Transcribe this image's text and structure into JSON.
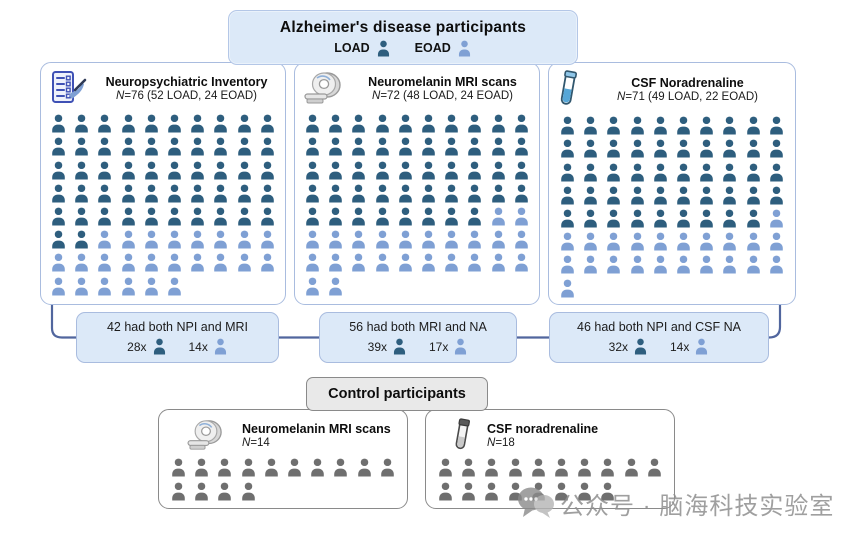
{
  "colors": {
    "load": "#2e5e7e",
    "eoad": "#7fa0d4",
    "control": "#6f6f6f"
  },
  "ad_header": {
    "title": "Alzheimer's disease participants",
    "legend": [
      {
        "label": "LOAD",
        "type": "load"
      },
      {
        "label": "EOAD",
        "type": "eoad"
      }
    ]
  },
  "ad_panels": [
    {
      "icon": "clipboard-pen-icon",
      "title": "Neuropsychiatric Inventory",
      "n_prefix": "N",
      "n_rest": "=76 (52 LOAD, 24 EOAD)",
      "load_count": 52,
      "eoad_count": 24,
      "rows": [
        [
          10,
          0
        ],
        [
          10,
          0
        ],
        [
          10,
          0
        ],
        [
          10,
          0
        ],
        [
          10,
          0
        ],
        [
          2,
          8
        ],
        [
          0,
          10
        ],
        [
          0,
          6
        ]
      ]
    },
    {
      "icon": "mri-scanner-icon",
      "title": "Neuromelanin MRI scans",
      "n_prefix": "N",
      "n_rest": "=72 (48 LOAD, 24 EOAD)",
      "load_count": 48,
      "eoad_count": 24,
      "rows": [
        [
          10,
          0
        ],
        [
          10,
          0
        ],
        [
          10,
          0
        ],
        [
          10,
          0
        ],
        [
          8,
          2
        ],
        [
          0,
          10
        ],
        [
          0,
          10
        ],
        [
          0,
          2
        ]
      ]
    },
    {
      "icon": "test-tube-icon",
      "title": "CSF Noradrenaline",
      "n_prefix": "N",
      "n_rest": "=71 (49 LOAD, 22 EOAD)",
      "load_count": 49,
      "eoad_count": 22,
      "rows": [
        [
          10,
          0
        ],
        [
          10,
          0
        ],
        [
          10,
          0
        ],
        [
          10,
          0
        ],
        [
          9,
          1
        ],
        [
          0,
          10
        ],
        [
          0,
          10
        ],
        [
          0,
          1
        ]
      ]
    }
  ],
  "overlap_boxes": [
    {
      "text": "42 had both NPI and MRI",
      "counts": [
        {
          "label": "28x",
          "type": "load"
        },
        {
          "label": "14x",
          "type": "eoad"
        }
      ]
    },
    {
      "text": "56 had both MRI and NA",
      "counts": [
        {
          "label": "39x",
          "type": "load"
        },
        {
          "label": "17x",
          "type": "eoad"
        }
      ]
    },
    {
      "text": "46 had both NPI and CSF NA",
      "counts": [
        {
          "label": "32x",
          "type": "load"
        },
        {
          "label": "14x",
          "type": "eoad"
        }
      ]
    }
  ],
  "control_header": {
    "title": "Control participants"
  },
  "control_panels": [
    {
      "icon": "mri-scanner-icon",
      "title": "Neuromelanin MRI scans",
      "n_prefix": "N",
      "n_rest": "=14",
      "count": 14,
      "rows": [
        10,
        4
      ]
    },
    {
      "icon": "test-tube-icon",
      "title": "CSF noradrenaline",
      "n_prefix": "N",
      "n_rest": "=18",
      "count": 18,
      "rows": [
        10,
        8
      ]
    }
  ],
  "watermark": {
    "text": "公众号 · 脑海科技实验室"
  }
}
